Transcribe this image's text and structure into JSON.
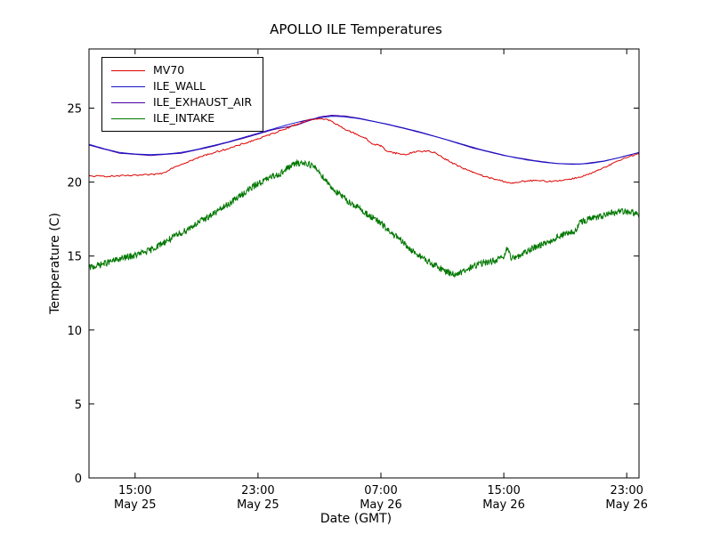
{
  "chart_data": {
    "type": "line",
    "title": "APOLLO ILE Temperatures",
    "xlabel": "Date (GMT)",
    "ylabel": "Temperature (C)",
    "x_unit": "hours_since_may25_0000_gmt",
    "xlim": [
      12,
      47.8
    ],
    "ylim": [
      0,
      29
    ],
    "grid": false,
    "legend_position": "upper left",
    "yticks": [
      0,
      5,
      10,
      15,
      20,
      25
    ],
    "xticks": [
      {
        "value": 15,
        "time": "15:00",
        "date": "May 25"
      },
      {
        "value": 23,
        "time": "23:00",
        "date": "May 25"
      },
      {
        "value": 31,
        "time": "07:00",
        "date": "May 26"
      },
      {
        "value": 39,
        "time": "15:00",
        "date": "May 26"
      },
      {
        "value": 47,
        "time": "23:00",
        "date": "May 26"
      }
    ],
    "series": [
      {
        "name": "MV70",
        "color": "#dd0000",
        "z": 2,
        "noise": 0.05,
        "step": 0.08,
        "points": [
          [
            12,
            20.4
          ],
          [
            13.5,
            20.4
          ],
          [
            15,
            20.45
          ],
          [
            16,
            20.5
          ],
          [
            16.8,
            20.6
          ],
          [
            17.5,
            21.0
          ],
          [
            18.5,
            21.4
          ],
          [
            19.5,
            21.8
          ],
          [
            20.5,
            22.1
          ],
          [
            21.5,
            22.4
          ],
          [
            22.5,
            22.75
          ],
          [
            23.5,
            23.1
          ],
          [
            24.5,
            23.5
          ],
          [
            25.5,
            23.9
          ],
          [
            26.3,
            24.2
          ],
          [
            27,
            24.3
          ],
          [
            27.6,
            24.2
          ],
          [
            28.2,
            23.85
          ],
          [
            28.8,
            23.5
          ],
          [
            29.4,
            23.25
          ],
          [
            30,
            22.95
          ],
          [
            30.4,
            22.6
          ],
          [
            31,
            22.45
          ],
          [
            31.4,
            22.1
          ],
          [
            32,
            21.95
          ],
          [
            32.6,
            21.85
          ],
          [
            33.2,
            22.05
          ],
          [
            34,
            22.1
          ],
          [
            34.6,
            21.95
          ],
          [
            35.2,
            21.55
          ],
          [
            36,
            21.1
          ],
          [
            37,
            20.65
          ],
          [
            38,
            20.3
          ],
          [
            39,
            20.05
          ],
          [
            39.6,
            19.9
          ],
          [
            40.2,
            20.05
          ],
          [
            41,
            20.1
          ],
          [
            42,
            20.05
          ],
          [
            43,
            20.15
          ],
          [
            43.8,
            20.3
          ],
          [
            44.6,
            20.55
          ],
          [
            45.4,
            20.9
          ],
          [
            46.2,
            21.3
          ],
          [
            47,
            21.7
          ],
          [
            47.8,
            21.9
          ]
        ]
      },
      {
        "name": "ILE_WALL",
        "color": "#1515cc",
        "z": 1,
        "noise": 0,
        "step": 0.25,
        "points": [
          [
            12,
            22.55
          ],
          [
            13,
            22.25
          ],
          [
            14,
            22.0
          ],
          [
            15,
            21.9
          ],
          [
            16,
            21.85
          ],
          [
            17,
            21.9
          ],
          [
            18,
            22.0
          ],
          [
            19,
            22.2
          ],
          [
            20,
            22.45
          ],
          [
            21,
            22.7
          ],
          [
            22,
            23.0
          ],
          [
            23,
            23.3
          ],
          [
            24,
            23.6
          ],
          [
            25,
            23.9
          ],
          [
            26,
            24.15
          ],
          [
            27,
            24.35
          ],
          [
            27.8,
            24.45
          ],
          [
            28.6,
            24.42
          ],
          [
            29.5,
            24.3
          ],
          [
            30.5,
            24.1
          ],
          [
            31.5,
            23.9
          ],
          [
            32.5,
            23.65
          ],
          [
            33.5,
            23.4
          ],
          [
            34.5,
            23.1
          ],
          [
            35.5,
            22.8
          ],
          [
            36.5,
            22.5
          ],
          [
            37.5,
            22.2
          ],
          [
            38.5,
            21.95
          ],
          [
            39.5,
            21.7
          ],
          [
            40.5,
            21.5
          ],
          [
            41.5,
            21.35
          ],
          [
            42.5,
            21.25
          ],
          [
            43.5,
            21.2
          ],
          [
            44.5,
            21.25
          ],
          [
            45.5,
            21.4
          ],
          [
            46.5,
            21.65
          ],
          [
            47.8,
            22.0
          ]
        ]
      },
      {
        "name": "ILE_EXHAUST_AIR",
        "color": "#4a00a0",
        "z": 0,
        "noise": 0,
        "step": 0.25,
        "points": [
          [
            12,
            22.5
          ],
          [
            14,
            21.95
          ],
          [
            16,
            21.8
          ],
          [
            18,
            21.95
          ],
          [
            20,
            22.4
          ],
          [
            22,
            22.95
          ],
          [
            24,
            23.55
          ],
          [
            25.5,
            23.85
          ],
          [
            27,
            24.4
          ],
          [
            27.8,
            24.52
          ],
          [
            28.6,
            24.47
          ],
          [
            29.5,
            24.33
          ],
          [
            31,
            24.0
          ],
          [
            33,
            23.5
          ],
          [
            35,
            22.95
          ],
          [
            37,
            22.3
          ],
          [
            39,
            21.8
          ],
          [
            41,
            21.45
          ],
          [
            42.5,
            21.25
          ],
          [
            44,
            21.22
          ],
          [
            45.5,
            21.42
          ],
          [
            46.5,
            21.65
          ],
          [
            47.8,
            22.0
          ]
        ]
      },
      {
        "name": "ILE_INTAKE",
        "color": "#007700",
        "z": 3,
        "noise": 0.22,
        "step": 0.03,
        "points": [
          [
            12,
            14.2
          ],
          [
            13,
            14.5
          ],
          [
            14,
            14.8
          ],
          [
            15,
            15.05
          ],
          [
            16,
            15.4
          ],
          [
            17,
            16.0
          ],
          [
            18,
            16.55
          ],
          [
            19,
            17.2
          ],
          [
            20,
            17.8
          ],
          [
            21,
            18.45
          ],
          [
            22,
            19.2
          ],
          [
            23,
            19.9
          ],
          [
            23.5,
            20.15
          ],
          [
            24,
            20.4
          ],
          [
            24.5,
            20.6
          ],
          [
            25,
            21.0
          ],
          [
            25.3,
            21.2
          ],
          [
            25.8,
            21.3
          ],
          [
            26.3,
            21.25
          ],
          [
            26.8,
            20.9
          ],
          [
            27.2,
            20.4
          ],
          [
            27.6,
            19.9
          ],
          [
            28,
            19.4
          ],
          [
            28.5,
            19.0
          ],
          [
            29,
            18.6
          ],
          [
            29.5,
            18.3
          ],
          [
            30,
            17.9
          ],
          [
            30.5,
            17.55
          ],
          [
            31,
            17.2
          ],
          [
            31.5,
            16.7
          ],
          [
            32,
            16.3
          ],
          [
            32.5,
            15.85
          ],
          [
            33,
            15.35
          ],
          [
            33.5,
            15.05
          ],
          [
            34,
            14.65
          ],
          [
            34.5,
            14.35
          ],
          [
            35,
            14.1
          ],
          [
            35.5,
            13.85
          ],
          [
            36,
            13.75
          ],
          [
            36.5,
            14.0
          ],
          [
            37,
            14.3
          ],
          [
            37.5,
            14.5
          ],
          [
            38,
            14.6
          ],
          [
            38.5,
            14.7
          ],
          [
            39,
            14.9
          ],
          [
            39.2,
            15.5
          ],
          [
            39.45,
            14.9
          ],
          [
            40,
            15.0
          ],
          [
            40.5,
            15.3
          ],
          [
            41,
            15.6
          ],
          [
            41.5,
            15.8
          ],
          [
            42,
            16.0
          ],
          [
            42.5,
            16.3
          ],
          [
            43,
            16.5
          ],
          [
            43.6,
            16.6
          ],
          [
            44,
            17.3
          ],
          [
            44.5,
            17.5
          ],
          [
            45,
            17.6
          ],
          [
            45.5,
            17.7
          ],
          [
            46,
            17.9
          ],
          [
            46.5,
            18.0
          ],
          [
            47,
            18.0
          ],
          [
            47.4,
            17.95
          ],
          [
            47.8,
            17.75
          ]
        ]
      }
    ]
  }
}
